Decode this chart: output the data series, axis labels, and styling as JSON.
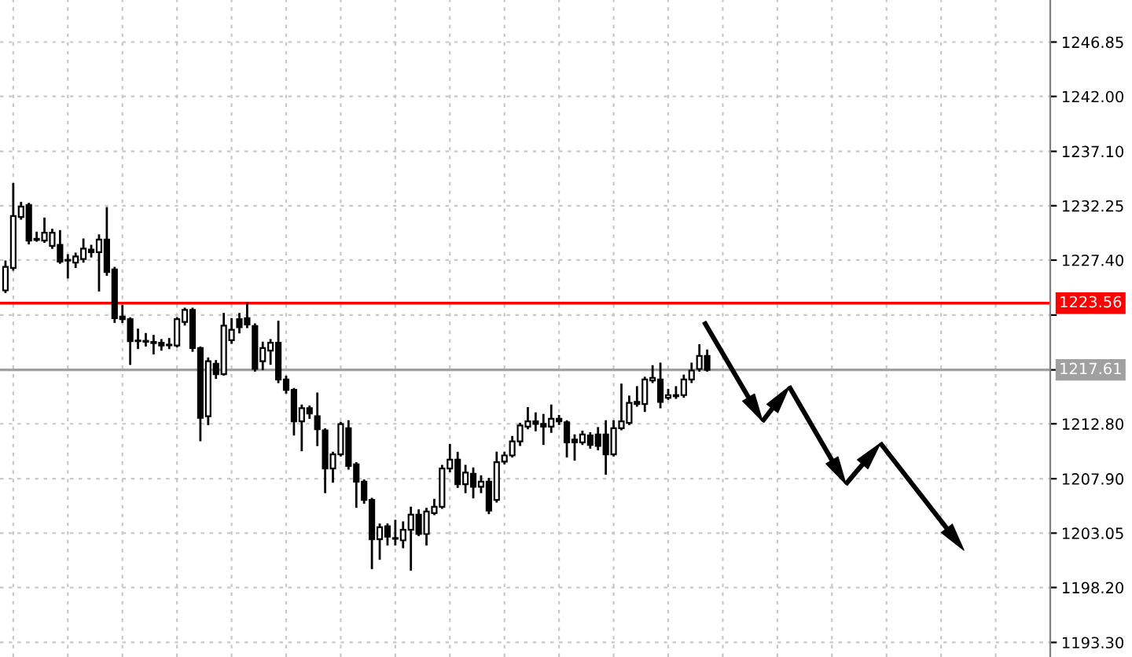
{
  "chart_data": {
    "type": "candlestick",
    "categories": [
      null,
      null,
      null,
      null,
      null,
      null,
      null,
      null,
      null,
      null,
      null,
      null,
      null,
      null,
      null,
      null,
      null,
      null,
      null,
      null,
      null,
      null,
      null,
      null,
      null,
      null,
      null,
      null,
      null,
      null,
      null,
      null,
      null,
      null,
      null,
      null,
      null,
      null,
      null,
      null,
      null,
      null,
      null,
      null,
      null,
      null,
      null,
      null,
      null,
      null,
      null,
      null,
      null,
      null,
      null,
      null,
      null,
      null,
      null,
      null,
      null,
      null,
      null,
      null,
      null,
      null,
      null,
      null,
      null,
      null,
      null,
      null,
      null,
      null,
      null,
      null,
      null,
      null,
      null,
      null,
      null,
      null,
      null,
      null,
      null,
      null,
      null,
      null,
      null,
      null,
      null,
      null,
      null,
      null,
      null,
      null,
      null,
      null,
      null,
      null,
      null,
      null,
      null,
      null,
      null,
      null,
      null,
      null,
      null,
      null,
      null,
      null,
      null,
      null,
      null,
      null,
      null,
      null,
      null,
      null,
      null,
      null,
      null,
      null,
      null,
      null,
      null,
      null,
      null,
      null,
      null,
      null,
      null,
      null,
      null
    ],
    "ohlc": [
      [
        1224.7,
        1227.27,
        1224.56,
        1226.8
      ],
      [
        1226.71,
        1234.18,
        1226.56,
        1231.33
      ],
      [
        1231.24,
        1232.5,
        1231.1,
        1232.17
      ],
      [
        1232.31,
        1232.41,
        1228.9,
        1229.14
      ],
      [
        1229.3,
        1229.84,
        1229.14,
        1229.2
      ],
      [
        1229.14,
        1231.1,
        1229.04,
        1229.84
      ],
      [
        1228.67,
        1230.1,
        1228.5,
        1229.84
      ],
      [
        1228.76,
        1229.98,
        1227.17,
        1227.27
      ],
      [
        1227.4,
        1227.83,
        1225.86,
        1227.36
      ],
      [
        1227.17,
        1227.97,
        1226.8,
        1227.73
      ],
      [
        1227.5,
        1229.23,
        1227.27,
        1228.43
      ],
      [
        1228.34,
        1228.67,
        1227.73,
        1228.11
      ],
      [
        1228.11,
        1229.6,
        1224.7,
        1229.23
      ],
      [
        1229.23,
        1232.03,
        1226.1,
        1226.33
      ],
      [
        1226.56,
        1226.7,
        1221.9,
        1222.22
      ],
      [
        1222.36,
        1223.29,
        1221.89,
        1222.13
      ],
      [
        1222.13,
        1222.2,
        1218.15,
        1220.17
      ],
      [
        1220.22,
        1221.19,
        1219.56,
        1220.17
      ],
      [
        1220.2,
        1220.8,
        1219.79,
        1220.12
      ],
      [
        1220.1,
        1220.63,
        1219.09,
        1220.0
      ],
      [
        1220.03,
        1220.26,
        1219.42,
        1219.79
      ],
      [
        1219.8,
        1220.35,
        1219.56,
        1219.85
      ],
      [
        1219.79,
        1222.22,
        1219.7,
        1222.13
      ],
      [
        1221.89,
        1223.06,
        1221.66,
        1222.96
      ],
      [
        1222.96,
        1223.06,
        1219.32,
        1219.56
      ],
      [
        1219.56,
        1219.6,
        1211.34,
        1213.34
      ],
      [
        1213.48,
        1218.62,
        1212.78,
        1218.39
      ],
      [
        1218.15,
        1218.39,
        1216.9,
        1217.22
      ],
      [
        1217.22,
        1222.59,
        1217.2,
        1221.56
      ],
      [
        1220.26,
        1222.13,
        1220.03,
        1221.19
      ],
      [
        1222.13,
        1222.59,
        1220.96,
        1221.42
      ],
      [
        1222.22,
        1223.53,
        1221.43,
        1221.66
      ],
      [
        1221.52,
        1221.66,
        1217.55,
        1217.69
      ],
      [
        1218.39,
        1220.03,
        1217.69,
        1219.56
      ],
      [
        1219.33,
        1220.26,
        1218.16,
        1220.03
      ],
      [
        1220.03,
        1221.9,
        1216.52,
        1216.76
      ],
      [
        1216.76,
        1216.99,
        1215.59,
        1215.82
      ],
      [
        1215.82,
        1215.9,
        1211.85,
        1213.02
      ],
      [
        1213.02,
        1214.42,
        1210.45,
        1214.19
      ],
      [
        1214.19,
        1214.33,
        1213.34,
        1213.72
      ],
      [
        1213.48,
        1215.49,
        1210.91,
        1212.32
      ],
      [
        1212.22,
        1212.3,
        1206.71,
        1208.81
      ],
      [
        1208.81,
        1210.21,
        1207.64,
        1210.07
      ],
      [
        1210.07,
        1212.88,
        1209.98,
        1212.78
      ],
      [
        1212.41,
        1213.02,
        1208.81,
        1209.04
      ],
      [
        1209.18,
        1209.28,
        1205.4,
        1207.64
      ],
      [
        1207.64,
        1207.74,
        1205.77,
        1206.01
      ],
      [
        1206.01,
        1206.1,
        1199.93,
        1202.5
      ],
      [
        1202.5,
        1203.81,
        1200.77,
        1203.58
      ],
      [
        1203.67,
        1203.81,
        1202.04,
        1202.74
      ],
      [
        1202.6,
        1204.14,
        1202.04,
        1202.55
      ],
      [
        1202.41,
        1204.0,
        1201.8,
        1203.34
      ],
      [
        1203.34,
        1205.31,
        1199.79,
        1204.7
      ],
      [
        1204.7,
        1205.07,
        1202.88,
        1202.97
      ],
      [
        1202.97,
        1205.21,
        1202.04,
        1204.98
      ],
      [
        1204.84,
        1206.01,
        1204.75,
        1205.4
      ],
      [
        1205.4,
        1209.04,
        1205.31,
        1208.81
      ],
      [
        1208.81,
        1210.91,
        1208.58,
        1209.61
      ],
      [
        1209.61,
        1210.21,
        1207.18,
        1207.41
      ],
      [
        1207.41,
        1209.04,
        1206.71,
        1208.44
      ],
      [
        1208.34,
        1208.81,
        1206.24,
        1207.18
      ],
      [
        1207.18,
        1208.11,
        1206.71,
        1207.64
      ],
      [
        1207.64,
        1207.88,
        1204.84,
        1205.07
      ],
      [
        1206.01,
        1210.22,
        1205.87,
        1209.38
      ],
      [
        1209.42,
        1210.22,
        1209.28,
        1209.98
      ],
      [
        1209.98,
        1211.62,
        1209.89,
        1211.24
      ],
      [
        1211.24,
        1212.79,
        1210.92,
        1212.65
      ],
      [
        1212.55,
        1214.19,
        1212.41,
        1213.02
      ],
      [
        1213.02,
        1213.72,
        1212.23,
        1212.79
      ],
      [
        1212.79,
        1213.58,
        1211.01,
        1212.55
      ],
      [
        1212.55,
        1214.42,
        1212.09,
        1213.25
      ],
      [
        1213.25,
        1213.49,
        1212.79,
        1213.02
      ],
      [
        1212.93,
        1213.02,
        1209.89,
        1211.15
      ],
      [
        1211.39,
        1211.76,
        1209.61,
        1211.15
      ],
      [
        1211.15,
        1212.09,
        1211.01,
        1211.85
      ],
      [
        1211.76,
        1211.95,
        1210.68,
        1210.92
      ],
      [
        1211.85,
        1212.41,
        1210.54,
        1210.82
      ],
      [
        1211.85,
        1213.02,
        1208.35,
        1210.08
      ],
      [
        1210.08,
        1213.02,
        1209.98,
        1212.41
      ],
      [
        1212.41,
        1216.29,
        1212.32,
        1213.02
      ],
      [
        1212.88,
        1215.22,
        1212.79,
        1214.66
      ],
      [
        1214.75,
        1216.06,
        1214.42,
        1214.56
      ],
      [
        1214.56,
        1216.9,
        1213.95,
        1216.76
      ],
      [
        1216.67,
        1217.93,
        1216.53,
        1216.9
      ],
      [
        1216.76,
        1218.16,
        1214.28,
        1214.75
      ],
      [
        1215.12,
        1215.82,
        1215.03,
        1215.36
      ],
      [
        1215.36,
        1216.06,
        1215.12,
        1215.26
      ],
      [
        1215.36,
        1217.09,
        1215.22,
        1216.76
      ],
      [
        1216.76,
        1218.16,
        1216.53,
        1217.55
      ],
      [
        1217.69,
        1219.8,
        1217.55,
        1218.86
      ],
      [
        1218.86,
        1219.33,
        1217.55,
        1217.61
      ],
      null,
      null,
      null,
      null,
      null,
      null,
      null,
      null,
      null,
      null,
      null,
      null,
      null,
      null,
      null,
      null,
      null,
      null,
      null,
      null,
      null,
      null,
      null,
      null,
      null,
      null,
      null,
      null,
      null,
      null,
      null,
      null,
      null,
      null,
      null,
      null,
      null,
      null,
      null,
      null,
      null,
      null,
      null,
      null
    ],
    "ylim": [
      1192.0,
      1250.6
    ],
    "yticks": [
      {
        "value": 1193.3,
        "label": "1193.30"
      },
      {
        "value": 1198.2,
        "label": "1198.20"
      },
      1203.05,
      {
        "value": 1207.9,
        "label": "1207.90"
      },
      {
        "value": 1212.8,
        "label": "1212.80"
      },
      {
        "value": 1217.61,
        "label": null
      },
      {
        "value": 1222.5,
        "label": null
      },
      {
        "value": 1227.4,
        "label": "1227.40"
      },
      1232.25,
      {
        "value": 1237.1,
        "label": "1237.10"
      },
      {
        "value": 1242.0,
        "label": "1242.00"
      },
      1246.85
    ],
    "ref_lines": [
      {
        "axis": "y",
        "value": 1223.56,
        "label": "1223.56",
        "color": "#ff0000"
      },
      {
        "axis": "y",
        "value": 1217.61,
        "label": "1217.61",
        "color": "#a0a0a0"
      }
    ],
    "grid": true,
    "tick_labels": "y"
  }
}
